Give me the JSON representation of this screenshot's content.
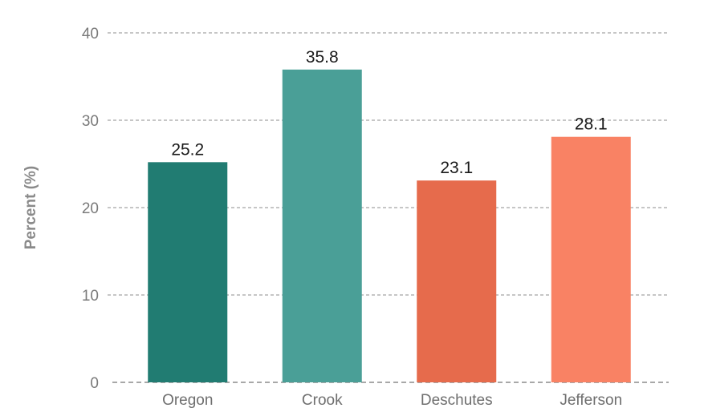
{
  "chart_data": {
    "type": "bar",
    "title": "",
    "xlabel": "",
    "ylabel": "Percent (%)",
    "ylim": [
      0,
      40
    ],
    "yticks": [
      0,
      10,
      20,
      30,
      40
    ],
    "grid": true,
    "categories": [
      "Oregon",
      "Crook",
      "Deschutes",
      "Jefferson"
    ],
    "values": [
      25.2,
      35.8,
      23.1,
      28.1
    ],
    "value_labels": [
      "25.2",
      "35.8",
      "23.1",
      "28.1"
    ],
    "colors": [
      "#217c72",
      "#4a9f97",
      "#e66b4c",
      "#f98264"
    ]
  }
}
